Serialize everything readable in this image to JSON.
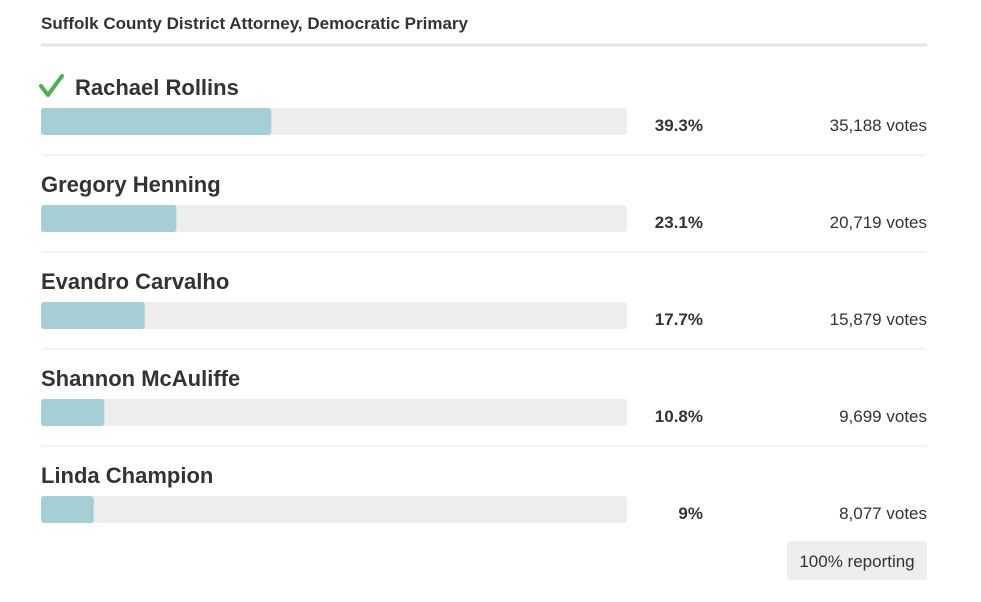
{
  "chart_data": {
    "type": "bar",
    "title": "Suffolk County District Attorney, Democratic Primary",
    "categories": [
      "Rachael Rollins",
      "Gregory Henning",
      "Evandro Carvalho",
      "Shannon McAuliffe",
      "Linda Champion"
    ],
    "values": [
      39.3,
      23.1,
      17.7,
      10.8,
      9
    ],
    "value_labels": [
      "39.3%",
      "23.1%",
      "17.7%",
      "10.8%",
      "9%"
    ],
    "votes": [
      "35,188 votes",
      "20,719 votes",
      "15,879 votes",
      "9,699 votes",
      "8,077 votes"
    ],
    "xlim": [
      0,
      100
    ],
    "color": "#a6cfd5",
    "track_color": "#eeeeee",
    "reporting": "100% reporting"
  }
}
